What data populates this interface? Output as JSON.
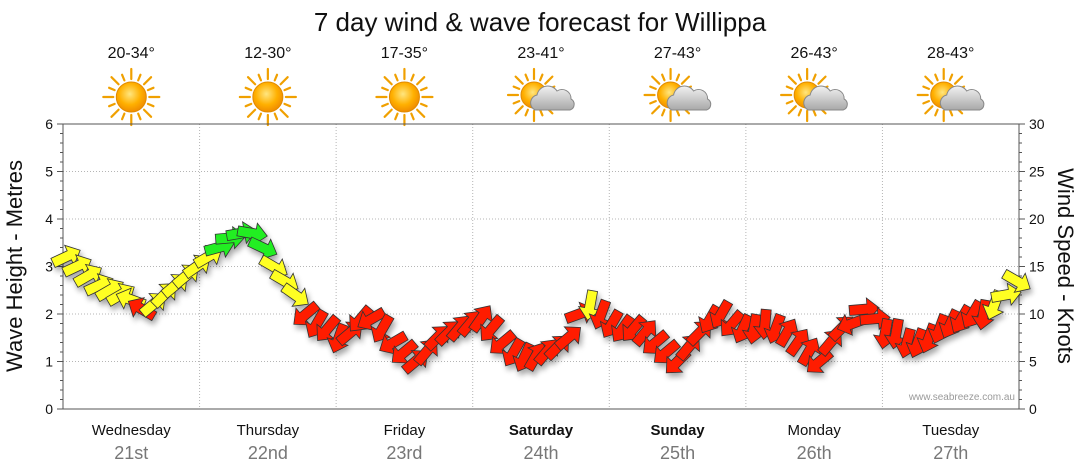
{
  "chart_data": {
    "type": "line",
    "title": "7 day wind & wave forecast for Willippa",
    "ylabel": "Wave Height - Metres",
    "y2label": "Wind Speed - Knots",
    "ylim": [
      0,
      6
    ],
    "y2lim": [
      0,
      30
    ],
    "yticks": [
      "0",
      "1",
      "2",
      "3",
      "4",
      "5",
      "6"
    ],
    "y2ticks": [
      "0",
      "5",
      "10",
      "15",
      "20",
      "25",
      "30"
    ],
    "grid": true,
    "credit": "www.seabreeze.com.au",
    "days": [
      {
        "name": "Wednesday",
        "date": "21st",
        "temp": "20-34°",
        "weather": "sunny",
        "bold": false
      },
      {
        "name": "Thursday",
        "date": "22nd",
        "temp": "12-30°",
        "weather": "sunny",
        "bold": false
      },
      {
        "name": "Friday",
        "date": "23rd",
        "temp": "17-35°",
        "weather": "sunny",
        "bold": false
      },
      {
        "name": "Saturday",
        "date": "24th",
        "temp": "23-41°",
        "weather": "partly-cloudy",
        "bold": true
      },
      {
        "name": "Sunday",
        "date": "25th",
        "temp": "27-43°",
        "weather": "partly-cloudy",
        "bold": true
      },
      {
        "name": "Monday",
        "date": "26th",
        "temp": "26-43°",
        "weather": "partly-cloudy",
        "bold": false
      },
      {
        "name": "Tuesday",
        "date": "27th",
        "temp": "28-43°",
        "weather": "partly-cloudy",
        "bold": false
      }
    ],
    "wind_color_scale": {
      "red": "#ff1a00",
      "yellow": "#ffff22",
      "green": "#22ee22"
    },
    "series": [
      {
        "name": "Wind Speed - Knots",
        "day_offset": [
          0.0,
          0.08,
          0.16,
          0.24,
          0.32,
          0.4,
          0.48,
          0.56,
          0.64,
          0.72,
          0.8,
          0.88,
          0.96,
          1.04,
          1.12,
          1.2,
          1.28,
          1.36,
          1.44,
          1.52,
          1.6,
          1.68,
          1.76,
          1.84,
          1.92,
          2.0,
          2.08,
          2.16,
          2.24,
          2.32,
          2.4,
          2.48,
          2.56,
          2.64,
          2.72,
          2.8,
          2.88,
          2.96,
          3.04,
          3.12,
          3.2,
          3.28,
          3.36,
          3.44,
          3.52,
          3.6,
          3.68,
          3.76,
          3.84,
          3.92,
          4.0,
          4.08,
          4.16,
          4.24,
          4.32,
          4.4,
          4.48,
          4.56,
          4.64,
          4.72,
          4.8,
          4.88,
          4.96,
          5.04,
          5.12,
          5.2,
          5.28,
          5.36,
          5.44,
          5.52,
          5.6,
          5.68,
          5.76,
          5.84,
          5.92,
          6.0,
          6.08,
          6.16,
          6.24,
          6.32,
          6.4,
          6.48,
          6.56,
          6.64,
          6.72,
          6.8,
          6.88,
          6.96
        ],
        "values": [
          16,
          15,
          14,
          13,
          12.5,
          12,
          11.5,
          10.5,
          11,
          12,
          13,
          14,
          15,
          16,
          17,
          18,
          18.5,
          18.5,
          17,
          15,
          13.5,
          12,
          10,
          9,
          8.5,
          7.5,
          8,
          9.5,
          9.5,
          8.5,
          7,
          6,
          5,
          6,
          7.5,
          8,
          8.5,
          9,
          9.5,
          8.5,
          7,
          6,
          5.5,
          5.5,
          6,
          6.5,
          7.5,
          10,
          11,
          10,
          9,
          8.5,
          8.5,
          8,
          7,
          6,
          5,
          6.5,
          8,
          9.5,
          10,
          9,
          8.5,
          8.5,
          9,
          8.5,
          8,
          7,
          6,
          5,
          7,
          8.5,
          9,
          10.5,
          9.5,
          8,
          8,
          7,
          7,
          7.5,
          8.5,
          9,
          9.5,
          10,
          10,
          11,
          12,
          13.5
        ],
        "direction_deg": [
          -25,
          -25,
          -30,
          -25,
          -30,
          -30,
          200,
          210,
          -40,
          -45,
          -40,
          -40,
          -35,
          -30,
          -15,
          -5,
          -10,
          10,
          25,
          30,
          30,
          35,
          140,
          120,
          130,
          110,
          -40,
          130,
          150,
          120,
          150,
          140,
          -40,
          -50,
          -45,
          -45,
          -50,
          -50,
          -55,
          130,
          140,
          120,
          115,
          -60,
          -50,
          -45,
          -40,
          -20,
          100,
          110,
          120,
          125,
          130,
          -50,
          140,
          140,
          135,
          -50,
          -45,
          120,
          120,
          130,
          115,
          100,
          95,
          110,
          -60,
          -55,
          -60,
          140,
          -50,
          -45,
          160,
          -5,
          -5,
          100,
          100,
          105,
          110,
          110,
          110,
          115,
          120,
          120,
          100,
          110,
          -10,
          30
        ]
      }
    ]
  }
}
